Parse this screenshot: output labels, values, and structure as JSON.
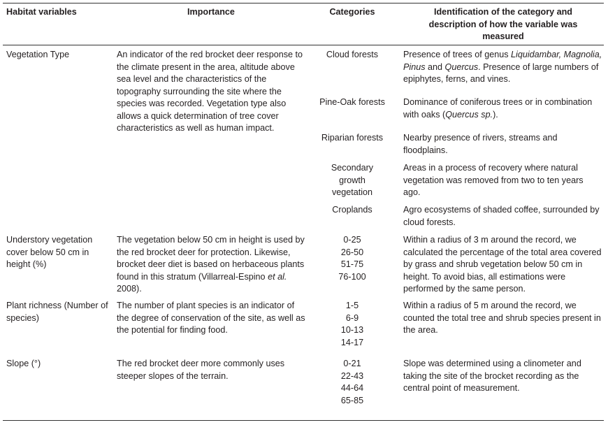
{
  "header": [
    "Habitat variables",
    "Importance",
    "Categories",
    "Identification of the category and description of how the variable was measured"
  ],
  "rows": [
    {
      "variable": "Vegetation Type",
      "importance": [
        "An indicator of the red brocket deer response to the climate present in the area, altitude above sea level and the characteristics of the topography surrounding the site where the species was recorded.  Vegetation type also allows a quick determination of tree cover characteristics as well as human impact."
      ],
      "items": [
        {
          "category": "Cloud forests",
          "description": [
            "Presence of trees of genus ",
            {
              "text": "Liquidambar, Magnolia, Pinus",
              "italic": true
            },
            " and ",
            {
              "text": "Quercus",
              "italic": true
            },
            ".  Presence of large numbers of epiphytes, ferns, and vines."
          ]
        },
        {
          "category": "Pine-Oak forests",
          "description": [
            "Dominance of coniferous trees or in combination with oaks (",
            {
              "text": "Quercus sp.",
              "italic": true
            },
            ")."
          ]
        },
        {
          "category": "Riparian forests",
          "description": [
            "Nearby presence of rivers, streams and floodplains."
          ]
        },
        {
          "category": "Secondary growth vegetation",
          "description": [
            "Areas in a process of recovery where natural vegetation was removed from two to ten years ago."
          ]
        },
        {
          "category": "Croplands",
          "description": [
            "Agro ecosystems of shaded coffee, surrounded by cloud forests."
          ]
        }
      ]
    },
    {
      "variable": "Understory vegetation cover below 50 cm in height (%)",
      "importance": [
        "The vegetation below 50 cm in height is used by the red brocket deer for protection.  Likewise, brocket deer diet is based on herbaceous plants found in this stratum (Villarreal-Espino ",
        {
          "text": "et al.",
          "italic": true
        },
        " 2008)."
      ],
      "categories": [
        "0-25",
        "26-50",
        "51-75",
        "76-100"
      ],
      "description": [
        "Within a radius of 3 m around the record, we calculated the percentage of the total area covered by grass and shrub vegetation below 50 cm in height.  To avoid bias, all estimations were performed by the same person."
      ]
    },
    {
      "variable": "Plant richness (Number of species)",
      "importance": [
        "The number of plant species is an indicator of the degree of conservation of the site, as well as the potential for finding food."
      ],
      "categories": [
        "1-5",
        "6-9",
        "10-13",
        "14-17"
      ],
      "description": [
        "Within a radius of 5 m around the record, we counted the total tree and shrub species present in the area."
      ]
    },
    {
      "variable": "Slope (°)",
      "importance": [
        "The red brocket deer more commonly uses steeper slopes of the terrain."
      ],
      "categories": [
        "0-21",
        "22-43",
        "44-64",
        "65-85"
      ],
      "description": [
        "Slope was determined using a clinometer and taking the site of the brocket recording as the central point of measurement."
      ]
    }
  ]
}
